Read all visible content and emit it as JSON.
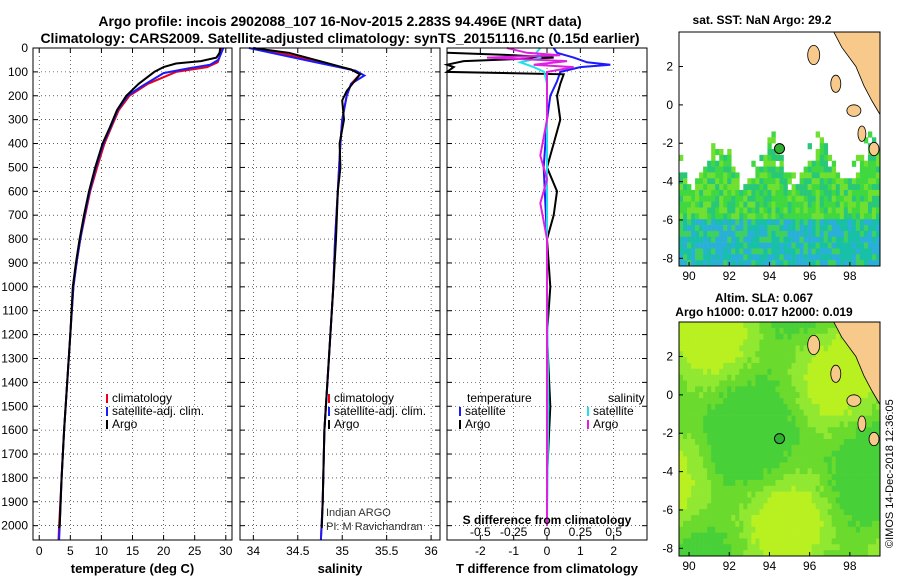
{
  "title": {
    "line1": "Argo profile: incois 2902088_107 16-Nov-2015 2.283S 94.496E (NRT data)",
    "line2": "Climatology: CARS2009. Satellite-adjusted climatology: synTS_20151116.nc (0.15d earlier)"
  },
  "colors": {
    "climatology": "#e8001c",
    "satellite": "#1a1aff",
    "argo": "#000000",
    "sat_salinity": "#22e0e8",
    "argo_salinity": "#e020e0",
    "land": "#f7c98a",
    "frame": "#000000"
  },
  "chart_data": [
    {
      "type": "line",
      "name": "temperature-profile",
      "xlabel": "temperature (deg C)",
      "xlim": [
        -1,
        31
      ],
      "ylim": [
        2060,
        0
      ],
      "xticks": [
        0,
        5,
        10,
        15,
        20,
        25,
        30
      ],
      "yticks": [
        0,
        100,
        200,
        300,
        400,
        500,
        600,
        700,
        800,
        900,
        1000,
        1100,
        1200,
        1300,
        1400,
        1500,
        1600,
        1700,
        1800,
        1900,
        2000
      ],
      "legend": [
        "climatology",
        "satellite-adj. clim.",
        "Argo"
      ],
      "series": [
        {
          "name": "climatology",
          "color": "#e8001c",
          "points": [
            [
              29.3,
              0
            ],
            [
              29.1,
              30
            ],
            [
              28.7,
              60
            ],
            [
              27.0,
              80
            ],
            [
              22.0,
              100
            ],
            [
              17.5,
              150
            ],
            [
              14.5,
              200
            ],
            [
              12.8,
              260
            ],
            [
              11.8,
              320
            ],
            [
              10.5,
              400
            ],
            [
              9.3,
              500
            ],
            [
              8.2,
              600
            ],
            [
              7.4,
              700
            ],
            [
              6.6,
              800
            ],
            [
              6.0,
              900
            ],
            [
              5.5,
              1000
            ],
            [
              5.0,
              1200
            ],
            [
              4.5,
              1400
            ],
            [
              4.0,
              1600
            ],
            [
              3.6,
              1800
            ],
            [
              3.2,
              2000
            ],
            [
              3.1,
              2060
            ]
          ]
        },
        {
          "name": "satellite-adj. clim.",
          "color": "#1a1aff",
          "points": [
            [
              29.6,
              0
            ],
            [
              29.3,
              20
            ],
            [
              28.8,
              50
            ],
            [
              27.5,
              70
            ],
            [
              24.0,
              85
            ],
            [
              20.0,
              105
            ],
            [
              16.5,
              160
            ],
            [
              14.2,
              200
            ],
            [
              12.6,
              260
            ],
            [
              11.5,
              330
            ],
            [
              10.3,
              400
            ],
            [
              9.1,
              500
            ],
            [
              8.1,
              600
            ],
            [
              7.3,
              700
            ],
            [
              6.6,
              800
            ],
            [
              6.0,
              900
            ],
            [
              5.5,
              1000
            ],
            [
              5.0,
              1200
            ],
            [
              4.5,
              1400
            ],
            [
              4.0,
              1600
            ],
            [
              3.6,
              1800
            ],
            [
              3.3,
              2000
            ],
            [
              3.2,
              2060
            ]
          ]
        },
        {
          "name": "Argo",
          "color": "#000000",
          "points": [
            [
              29.1,
              0
            ],
            [
              29.0,
              20
            ],
            [
              28.5,
              40
            ],
            [
              26.0,
              55
            ],
            [
              22.0,
              65
            ],
            [
              20.0,
              80
            ],
            [
              18.5,
              100
            ],
            [
              16.0,
              150
            ],
            [
              14.0,
              200
            ],
            [
              12.5,
              260
            ],
            [
              11.4,
              330
            ],
            [
              10.2,
              400
            ],
            [
              9.0,
              500
            ],
            [
              8.0,
              600
            ],
            [
              7.2,
              700
            ],
            [
              6.5,
              800
            ],
            [
              5.9,
              900
            ],
            [
              5.4,
              1000
            ],
            [
              5.0,
              1200
            ],
            [
              4.5,
              1400
            ],
            [
              4.0,
              1600
            ],
            [
              3.6,
              1800
            ],
            [
              3.3,
              2000
            ],
            [
              3.2,
              2010
            ]
          ]
        }
      ]
    },
    {
      "type": "line",
      "name": "salinity-profile",
      "xlabel": "salinity",
      "xlim": [
        33.85,
        36.1
      ],
      "ylim": [
        2060,
        0
      ],
      "xticks": [
        34,
        34.5,
        35,
        35.5,
        36
      ],
      "legend": [
        "climatology",
        "satellite-adj. clim.",
        "Argo"
      ],
      "annotation": [
        "Indian ARGO",
        "PI: M Ravichandran"
      ],
      "series": [
        {
          "name": "climatology",
          "color": "#e8001c",
          "points": [
            [
              34.0,
              0
            ],
            [
              34.3,
              20
            ],
            [
              34.75,
              60
            ],
            [
              35.1,
              90
            ],
            [
              35.2,
              110
            ],
            [
              35.1,
              150
            ],
            [
              35.05,
              200
            ],
            [
              35.0,
              300
            ],
            [
              34.98,
              400
            ],
            [
              34.95,
              600
            ],
            [
              34.92,
              800
            ],
            [
              34.9,
              1000
            ],
            [
              34.85,
              1300
            ],
            [
              34.8,
              1600
            ],
            [
              34.78,
              1900
            ],
            [
              34.76,
              2060
            ]
          ]
        },
        {
          "name": "satellite-adj. clim.",
          "color": "#1a1aff",
          "points": [
            [
              33.95,
              0
            ],
            [
              34.2,
              20
            ],
            [
              34.7,
              60
            ],
            [
              35.15,
              95
            ],
            [
              35.25,
              115
            ],
            [
              35.1,
              150
            ],
            [
              35.05,
              200
            ],
            [
              35.0,
              300
            ],
            [
              34.98,
              400
            ],
            [
              34.95,
              600
            ],
            [
              34.92,
              800
            ],
            [
              34.9,
              1000
            ],
            [
              34.85,
              1300
            ],
            [
              34.8,
              1600
            ],
            [
              34.78,
              1900
            ],
            [
              34.76,
              2060
            ]
          ]
        },
        {
          "name": "Argo",
          "color": "#000000",
          "points": [
            [
              34.0,
              0
            ],
            [
              34.4,
              20
            ],
            [
              34.8,
              60
            ],
            [
              35.1,
              90
            ],
            [
              35.2,
              110
            ],
            [
              35.05,
              180
            ],
            [
              35.0,
              220
            ],
            [
              35.02,
              300
            ],
            [
              34.97,
              400
            ],
            [
              34.98,
              500
            ],
            [
              34.95,
              600
            ],
            [
              34.94,
              700
            ],
            [
              34.93,
              800
            ],
            [
              34.9,
              1000
            ],
            [
              34.85,
              1300
            ],
            [
              34.8,
              1600
            ],
            [
              34.78,
              1900
            ],
            [
              34.77,
              2010
            ]
          ]
        }
      ]
    },
    {
      "type": "line",
      "name": "difference-profile",
      "xlabel": "T difference from climatology",
      "xlabel_top": "S difference from climatology",
      "xlim": [
        -3,
        3
      ],
      "ylim": [
        2060,
        0
      ],
      "xticks": [
        -2,
        -1,
        0,
        1,
        2
      ],
      "xticks_top": [
        "-0.5",
        "-0.25",
        "0",
        "0.25",
        "0.5"
      ],
      "legend_left_title": "temperature",
      "legend_right_title": "salinity",
      "legend_left": [
        "satellite",
        "Argo"
      ],
      "legend_right": [
        "satellite",
        "Argo"
      ],
      "series": [
        {
          "name": "T satellite",
          "color": "#1a1aff",
          "points": [
            [
              0.2,
              0
            ],
            [
              0.3,
              20
            ],
            [
              0.8,
              40
            ],
            [
              1.2,
              60
            ],
            [
              1.9,
              70
            ],
            [
              1.0,
              80
            ],
            [
              0.4,
              100
            ],
            [
              0.3,
              140
            ],
            [
              0.1,
              200
            ],
            [
              0.0,
              300
            ],
            [
              -0.1,
              500
            ],
            [
              0.0,
              800
            ],
            [
              0.0,
              2000
            ]
          ]
        },
        {
          "name": "T Argo",
          "color": "#000000",
          "points": [
            [
              -3.0,
              20
            ],
            [
              -1.0,
              30
            ],
            [
              0.2,
              40
            ],
            [
              -2.5,
              55
            ],
            [
              -3.0,
              70
            ],
            [
              -2.8,
              80
            ],
            [
              -3.0,
              100
            ],
            [
              0.5,
              110
            ],
            [
              0.4,
              150
            ],
            [
              0.3,
              200
            ],
            [
              0.4,
              300
            ],
            [
              0.2,
              400
            ],
            [
              0.0,
              500
            ],
            [
              0.3,
              600
            ],
            [
              0.2,
              700
            ],
            [
              0.0,
              800
            ],
            [
              0.1,
              1000
            ],
            [
              0.0,
              1200
            ],
            [
              0.1,
              1500
            ],
            [
              0.0,
              1800
            ],
            [
              0.0,
              2000
            ]
          ]
        },
        {
          "name": "S satellite",
          "color": "#22e0e8",
          "points": [
            [
              -0.05,
              0
            ],
            [
              -0.08,
              20
            ],
            [
              -0.05,
              40
            ],
            [
              -0.2,
              60
            ],
            [
              -0.1,
              80
            ],
            [
              -0.02,
              100
            ],
            [
              0.0,
              150
            ],
            [
              0.0,
              300
            ],
            [
              0.0,
              600
            ],
            [
              0.0,
              1000
            ],
            [
              0.01,
              1500
            ],
            [
              0.0,
              2000
            ]
          ]
        },
        {
          "name": "S Argo",
          "color": "#e020e0",
          "points": [
            [
              -0.3,
              0
            ],
            [
              -0.15,
              20
            ],
            [
              0.1,
              30
            ],
            [
              -0.45,
              40
            ],
            [
              0.15,
              55
            ],
            [
              -0.1,
              70
            ],
            [
              0.2,
              80
            ],
            [
              0.0,
              100
            ],
            [
              0.0,
              300
            ],
            [
              -0.05,
              450
            ],
            [
              0.0,
              550
            ],
            [
              -0.05,
              650
            ],
            [
              0.0,
              800
            ],
            [
              0.0,
              1500
            ],
            [
              0.0,
              2000
            ]
          ]
        }
      ]
    },
    {
      "type": "heatmap",
      "name": "sst-map",
      "title": "sat. SST: NaN Argo: 29.2",
      "xticks": [
        "90",
        "92",
        "94",
        "96",
        "98"
      ],
      "yticks": [
        "2",
        "0",
        "-2",
        "-4",
        "-6",
        "-8"
      ],
      "xlim": [
        89.5,
        99.5
      ],
      "ylim": [
        -8.4,
        3.8
      ],
      "argo_position": [
        94.5,
        -2.28
      ]
    },
    {
      "type": "heatmap",
      "name": "sla-map",
      "title": "Altim. SLA: 0.067",
      "subtitle": "Argo h1000: 0.017 h2000: 0.019",
      "xticks": [
        "90",
        "92",
        "94",
        "96",
        "98"
      ],
      "yticks": [
        "2",
        "0",
        "-2",
        "-4",
        "-6",
        "-8"
      ],
      "xlim": [
        89.5,
        99.5
      ],
      "ylim": [
        -8.4,
        3.8
      ],
      "argo_position": [
        94.5,
        -2.28
      ]
    }
  ],
  "copyright": "©IMOS 14-Dec-2018 12:36:05"
}
